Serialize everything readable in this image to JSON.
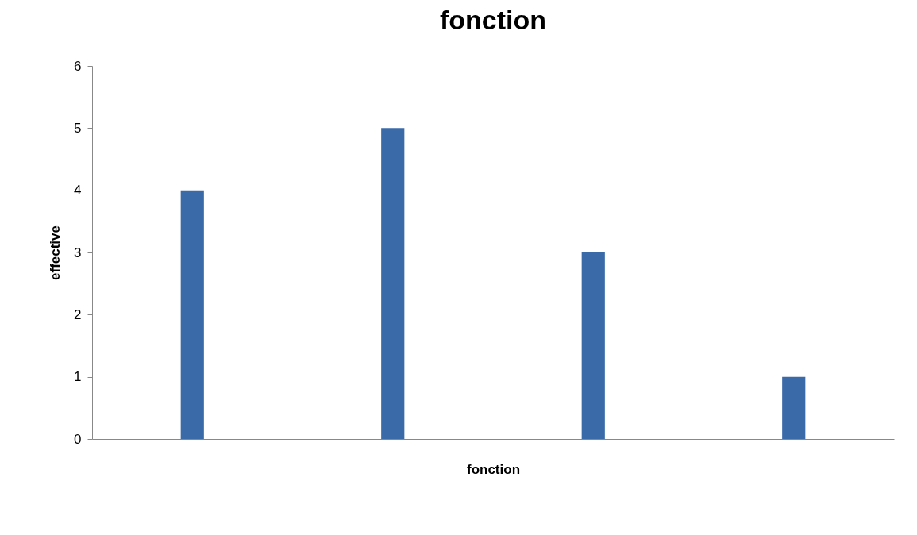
{
  "chart_data": {
    "type": "bar",
    "title": "fonction",
    "xlabel": "fonction",
    "ylabel": "effective",
    "categories": [
      null,
      null,
      null,
      null
    ],
    "values": [
      4,
      5,
      3,
      1
    ],
    "color": "#3a6aa8",
    "ylim": [
      0,
      6
    ],
    "yticks": [
      0,
      1,
      2,
      3,
      4,
      5,
      6
    ],
    "grid": false,
    "tick_labels": "y"
  }
}
